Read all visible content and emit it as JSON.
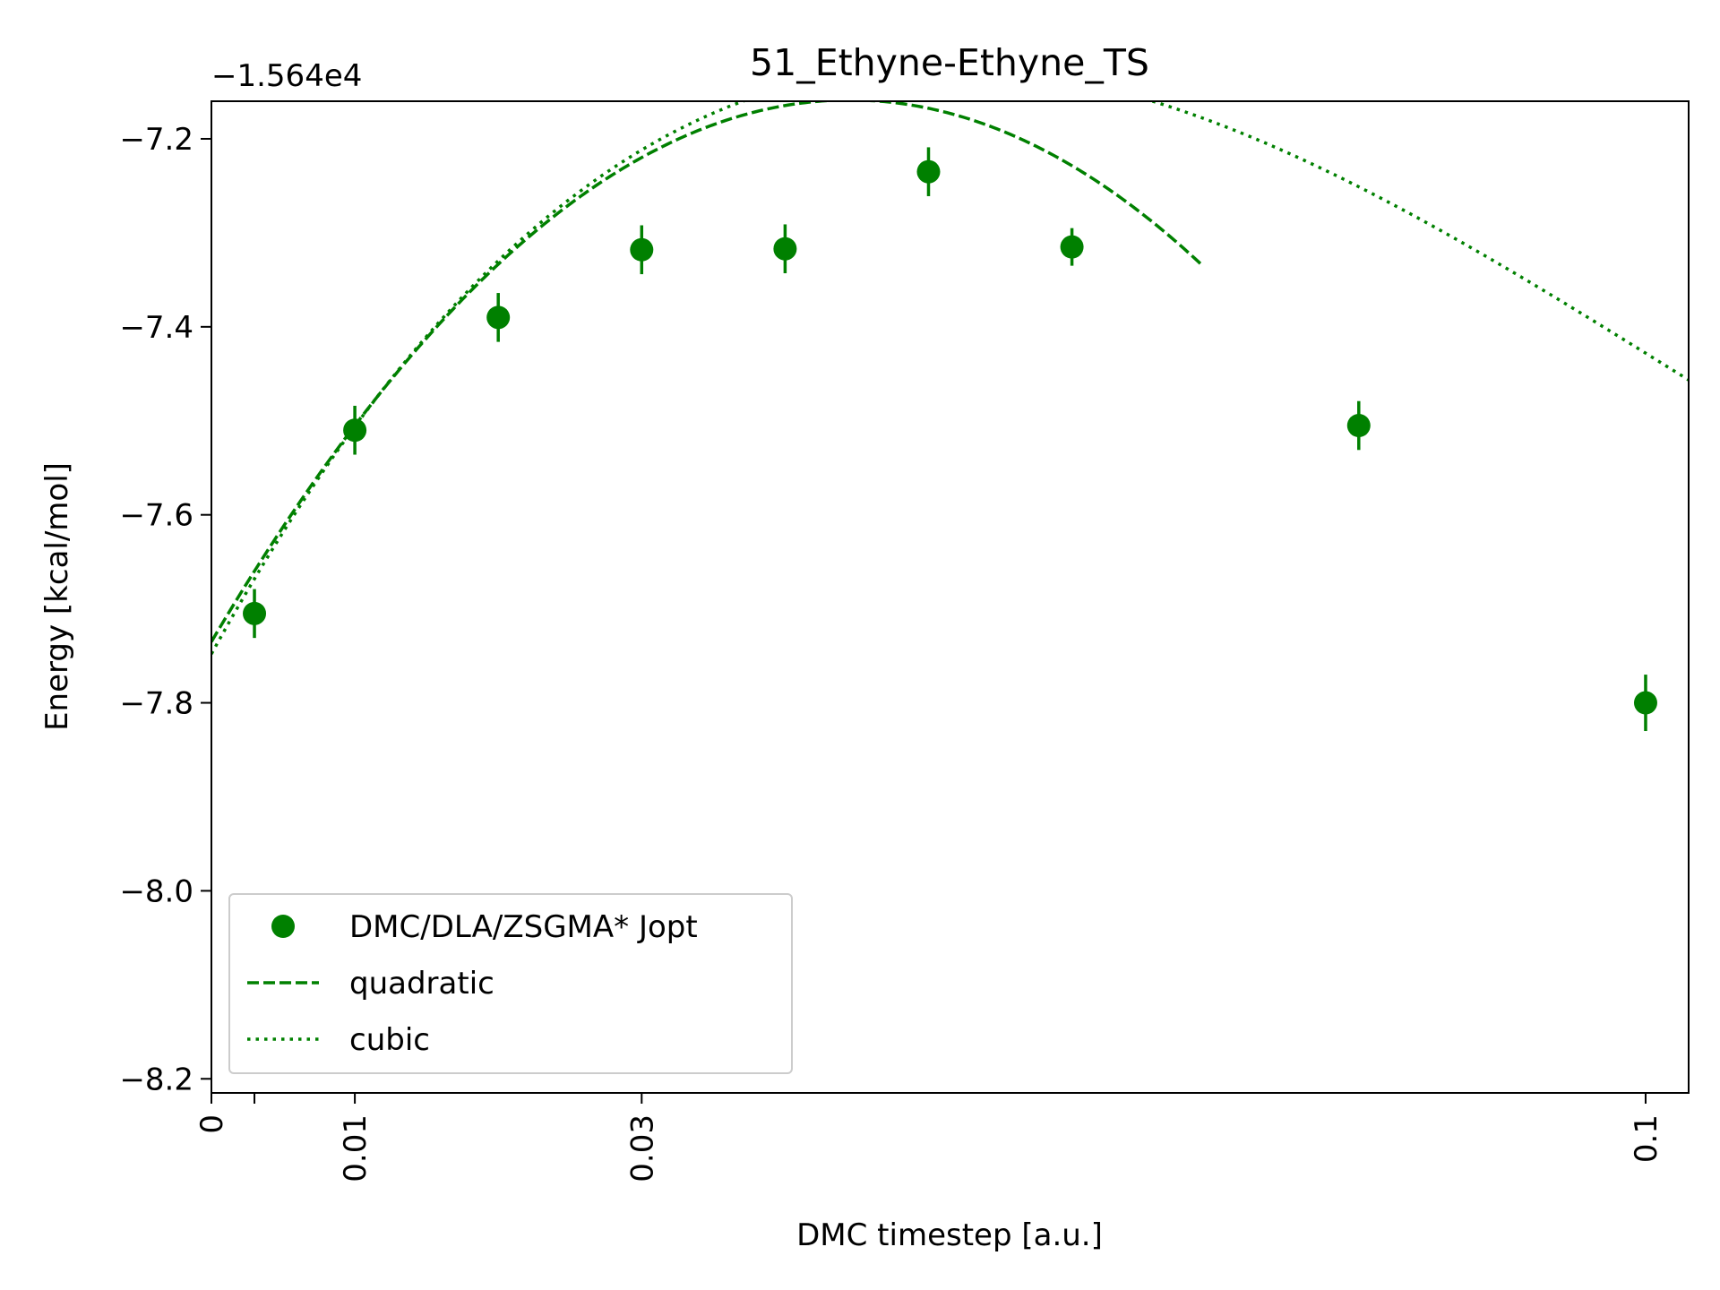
{
  "chart_data": {
    "type": "scatter",
    "title": "51_Ethyne-Ethyne_TS",
    "xlabel": "DMC timestep [a.u.]",
    "ylabel": "Energy [kcal/mol]",
    "y_offset_text": "−1.564e4",
    "xlim": [
      0,
      0.103
    ],
    "ylim": [
      -8.215,
      -7.16
    ],
    "x_ticks": [
      {
        "value": 0,
        "label": "0"
      },
      {
        "value": 0.003,
        "label": ""
      },
      {
        "value": 0.01,
        "label": "0.01"
      },
      {
        "value": 0.03,
        "label": "0.03"
      },
      {
        "value": 0.1,
        "label": "0.1"
      }
    ],
    "y_ticks": [
      {
        "value": -7.2,
        "label": "−7.2"
      },
      {
        "value": -7.4,
        "label": "−7.4"
      },
      {
        "value": -7.6,
        "label": "−7.6"
      },
      {
        "value": -7.8,
        "label": "−7.8"
      },
      {
        "value": -8.0,
        "label": "−8.0"
      },
      {
        "value": -8.2,
        "label": "−8.2"
      }
    ],
    "legend_position": "lower-left",
    "color": "#008000",
    "series": [
      {
        "name": "DMC/DLA/ZSGMA* Jopt",
        "kind": "points",
        "points": [
          {
            "x": 0.003,
            "y": -7.705,
            "err": 0.026
          },
          {
            "x": 0.01,
            "y": -7.51,
            "err": 0.026
          },
          {
            "x": 0.02,
            "y": -7.39,
            "err": 0.026
          },
          {
            "x": 0.03,
            "y": -7.318,
            "err": 0.026
          },
          {
            "x": 0.04,
            "y": -7.317,
            "err": 0.026
          },
          {
            "x": 0.05,
            "y": -7.235,
            "err": 0.026
          },
          {
            "x": 0.06,
            "y": -7.315,
            "err": 0.02
          },
          {
            "x": 0.08,
            "y": -7.505,
            "err": 0.026
          },
          {
            "x": 0.1,
            "y": -7.8,
            "err": 0.03
          }
        ]
      },
      {
        "name": "quadratic",
        "kind": "dashed",
        "x_range": [
          0,
          0.069
        ],
        "coeffs": [
          -7.735,
          25.9,
          -291
        ]
      },
      {
        "name": "cubic",
        "kind": "dotted",
        "x_range": [
          0,
          0.103
        ],
        "coeffs": [
          -7.748,
          27.7,
          -363,
          1180
        ]
      }
    ]
  }
}
